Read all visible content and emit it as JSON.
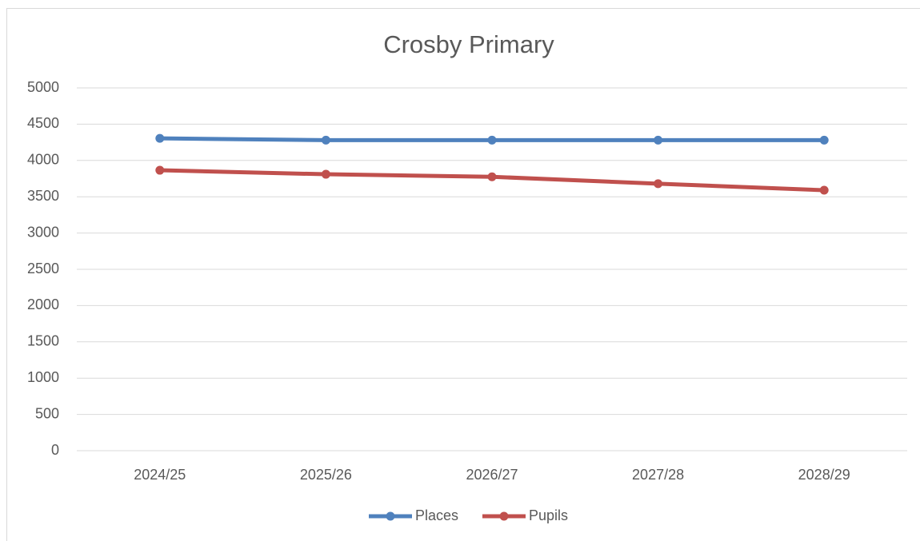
{
  "chart_data": {
    "type": "line",
    "title": "Crosby Primary",
    "categories": [
      "2024/25",
      "2025/26",
      "2026/27",
      "2027/28",
      "2028/29"
    ],
    "series": [
      {
        "name": "Places",
        "color": "#4f81bd",
        "values": [
          4305,
          4280,
          4280,
          4280,
          4280
        ]
      },
      {
        "name": "Pupils",
        "color": "#c0504d",
        "values": [
          3865,
          3810,
          3775,
          3680,
          3590
        ]
      }
    ],
    "ylim": [
      0,
      5000
    ],
    "yticks": [
      0,
      500,
      1000,
      1500,
      2000,
      2500,
      3000,
      3500,
      4000,
      4500,
      5000
    ],
    "grid": true,
    "legend": "bottom"
  }
}
